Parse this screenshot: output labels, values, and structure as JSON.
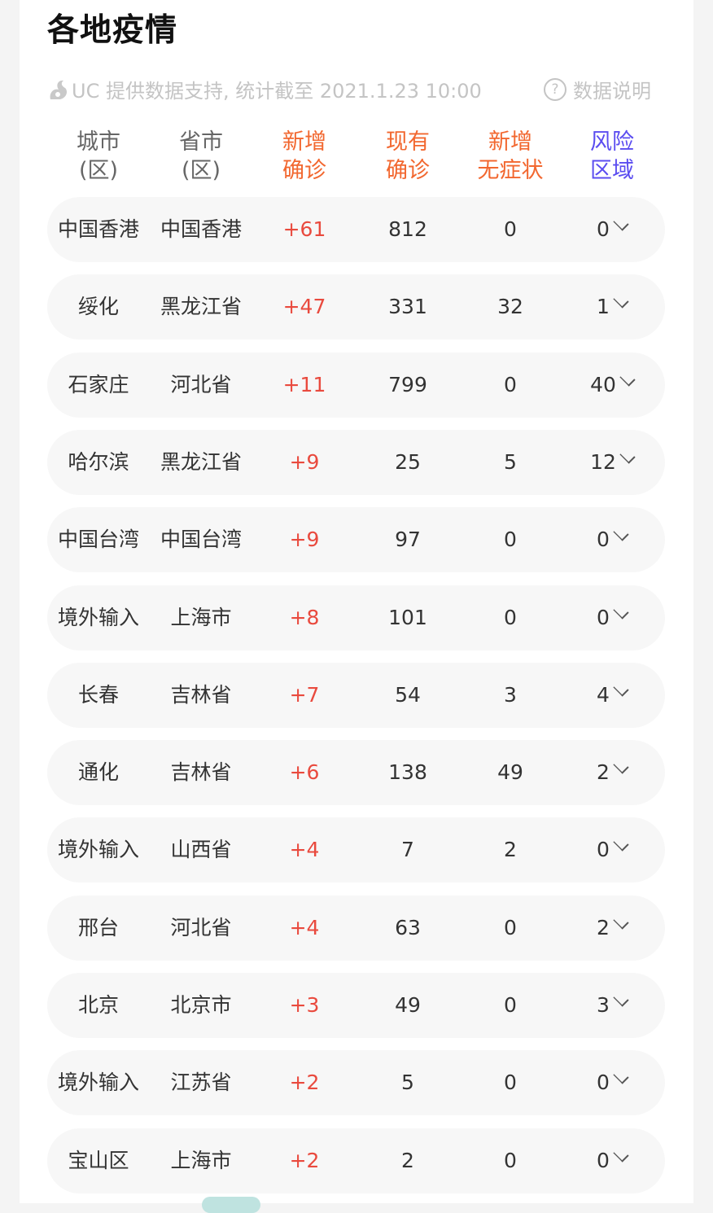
{
  "title": "各地疫情",
  "source_text": "UC 提供数据支持, 统计截至 2021.1.23 10:00",
  "help_label": "数据说明",
  "colors": {
    "orange": "#f2672f",
    "blue": "#5b4df0",
    "red": "#e94a3e",
    "gray": "#666666"
  },
  "headers": [
    {
      "l1": "城市",
      "l2": "(区)"
    },
    {
      "l1": "省市",
      "l2": "(区)"
    },
    {
      "l1": "新增",
      "l2": "确诊"
    },
    {
      "l1": "现有",
      "l2": "确诊"
    },
    {
      "l1": "新增",
      "l2": "无症状"
    },
    {
      "l1": "风险",
      "l2": "区域"
    }
  ],
  "rows": [
    {
      "city": "中国香港",
      "province": "中国香港",
      "new_confirmed": "+61",
      "current": "812",
      "asymptomatic": "0",
      "risk": "0"
    },
    {
      "city": "绥化",
      "province": "黑龙江省",
      "new_confirmed": "+47",
      "current": "331",
      "asymptomatic": "32",
      "risk": "1"
    },
    {
      "city": "石家庄",
      "province": "河北省",
      "new_confirmed": "+11",
      "current": "799",
      "asymptomatic": "0",
      "risk": "40"
    },
    {
      "city": "哈尔滨",
      "province": "黑龙江省",
      "new_confirmed": "+9",
      "current": "25",
      "asymptomatic": "5",
      "risk": "12"
    },
    {
      "city": "中国台湾",
      "province": "中国台湾",
      "new_confirmed": "+9",
      "current": "97",
      "asymptomatic": "0",
      "risk": "0"
    },
    {
      "city": "境外输入",
      "province": "上海市",
      "new_confirmed": "+8",
      "current": "101",
      "asymptomatic": "0",
      "risk": "0"
    },
    {
      "city": "长春",
      "province": "吉林省",
      "new_confirmed": "+7",
      "current": "54",
      "asymptomatic": "3",
      "risk": "4"
    },
    {
      "city": "通化",
      "province": "吉林省",
      "new_confirmed": "+6",
      "current": "138",
      "asymptomatic": "49",
      "risk": "2"
    },
    {
      "city": "境外输入",
      "province": "山西省",
      "new_confirmed": "+4",
      "current": "7",
      "asymptomatic": "2",
      "risk": "0"
    },
    {
      "city": "邢台",
      "province": "河北省",
      "new_confirmed": "+4",
      "current": "63",
      "asymptomatic": "0",
      "risk": "2"
    },
    {
      "city": "北京",
      "province": "北京市",
      "new_confirmed": "+3",
      "current": "49",
      "asymptomatic": "0",
      "risk": "3"
    },
    {
      "city": "境外输入",
      "province": "江苏省",
      "new_confirmed": "+2",
      "current": "5",
      "asymptomatic": "0",
      "risk": "0"
    },
    {
      "city": "宝山区",
      "province": "上海市",
      "new_confirmed": "+2",
      "current": "2",
      "asymptomatic": "0",
      "risk": "0"
    }
  ]
}
